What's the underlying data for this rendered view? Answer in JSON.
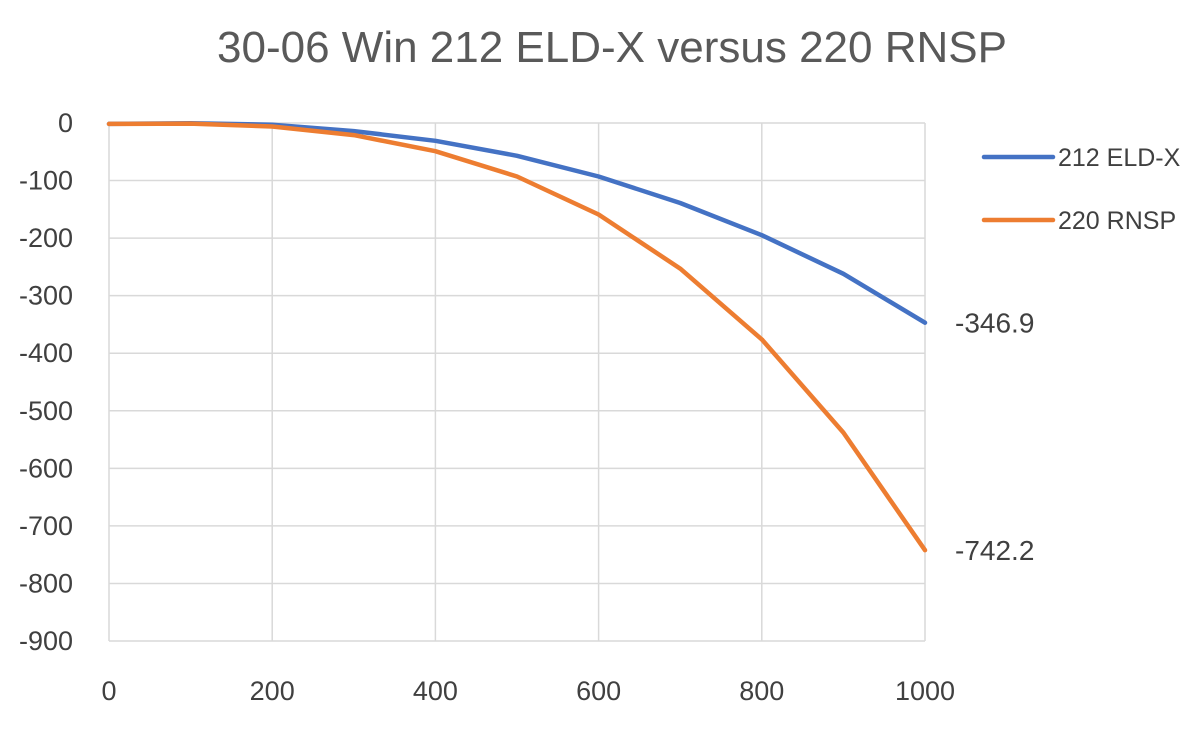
{
  "chart_data": {
    "type": "line",
    "title": "30-06 Win  212 ELD-X  versus  220 RNSP",
    "xlabel": "",
    "ylabel": "",
    "xlim": [
      0,
      1000
    ],
    "ylim": [
      -900,
      0
    ],
    "x_ticks": [
      0,
      200,
      400,
      600,
      800,
      1000
    ],
    "y_ticks": [
      0,
      -100,
      -200,
      -300,
      -400,
      -500,
      -600,
      -700,
      -800,
      -900
    ],
    "x_tick_labels": [
      "0",
      "200",
      "400",
      "600",
      "800",
      "1000"
    ],
    "y_tick_labels": [
      "0",
      "-100",
      "-200",
      "-300",
      "-400",
      "-500",
      "-600",
      "-700",
      "-800",
      "-900"
    ],
    "grid": true,
    "legend_position": "right",
    "x": [
      0,
      100,
      200,
      300,
      400,
      500,
      600,
      700,
      800,
      900,
      1000
    ],
    "series": [
      {
        "name": "212 ELD-X",
        "color": "#4472C4",
        "values": [
          -1.5,
          -0.5,
          -3,
          -14,
          -31,
          -57,
          -93,
          -139,
          -195,
          -262,
          -346.9
        ],
        "end_label": "-346.9"
      },
      {
        "name": "220 RNSP",
        "color": "#ED7D31",
        "values": [
          -1.5,
          -1,
          -6,
          -21,
          -49,
          -93,
          -159,
          -253,
          -376,
          -538,
          -742.2
        ],
        "end_label": "-742.2"
      }
    ]
  }
}
